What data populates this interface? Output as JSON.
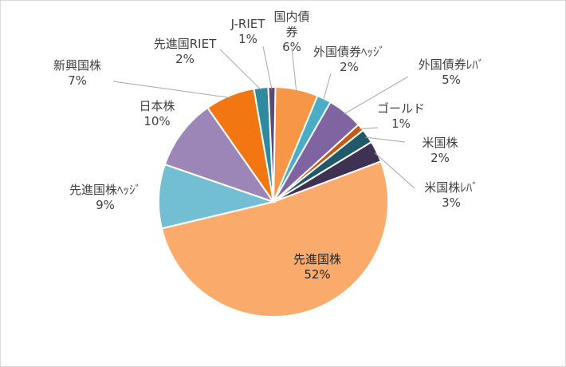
{
  "chart_data": {
    "type": "pie",
    "title": "",
    "slices": [
      {
        "name": "国内債券",
        "label_lines": [
          "国内債",
          "券"
        ],
        "value": 6,
        "pct_label": "6%",
        "color": "#F79646"
      },
      {
        "name": "外国債券ヘッジ",
        "label_lines": [
          "外国債券ﾍｯｼﾞ"
        ],
        "value": 2,
        "pct_label": "2%",
        "color": "#4BACC6"
      },
      {
        "name": "外国債券レバ",
        "label_lines": [
          "外国債券ﾚﾊﾞ"
        ],
        "value": 5,
        "pct_label": "5%",
        "color": "#8064A2"
      },
      {
        "name": "ゴールド",
        "label_lines": [
          "ゴールド"
        ],
        "value": 1,
        "pct_label": "1%",
        "color": "#C65911"
      },
      {
        "name": "米国株",
        "label_lines": [
          "米国株"
        ],
        "value": 2,
        "pct_label": "2%",
        "color": "#215968"
      },
      {
        "name": "米国株レバ",
        "label_lines": [
          "米国株ﾚﾊﾞ"
        ],
        "value": 3,
        "pct_label": "3%",
        "color": "#3F3151"
      },
      {
        "name": "先進国株",
        "label_lines": [
          "先進国株"
        ],
        "value": 52,
        "pct_label": "52%",
        "color": "#FAAA6A"
      },
      {
        "name": "先進国株ヘッジ",
        "label_lines": [
          "先進国株ﾍｯｼﾞ"
        ],
        "value": 9,
        "pct_label": "9%",
        "color": "#72BFD3"
      },
      {
        "name": "日本株",
        "label_lines": [
          "日本株"
        ],
        "value": 10,
        "pct_label": "10%",
        "color": "#9C86B8"
      },
      {
        "name": "新興国株",
        "label_lines": [
          "新興国株"
        ],
        "value": 7,
        "pct_label": "7%",
        "color": "#F27712"
      },
      {
        "name": "先進国RIET",
        "label_lines": [
          "先進国RIET"
        ],
        "value": 2,
        "pct_label": "2%",
        "color": "#2E8A9E"
      },
      {
        "name": "J-RIET",
        "label_lines": [
          "J-RIET"
        ],
        "value": 1,
        "pct_label": "1%",
        "color": "#5B4A78"
      }
    ]
  }
}
